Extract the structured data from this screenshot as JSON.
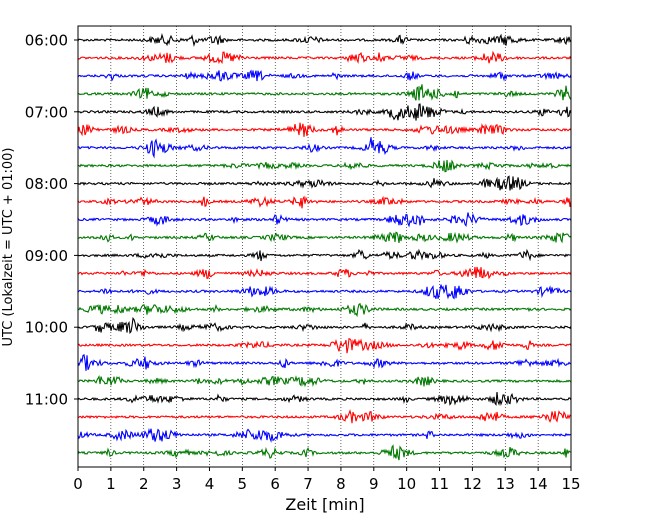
{
  "chart_data": {
    "type": "line",
    "title": "",
    "xlabel": "Zeit  [min]",
    "ylabel": "UTC (Lokalzeit = UTC + 01:00)",
    "xlim": [
      0,
      15
    ],
    "x_ticks": [
      "0",
      "1",
      "2",
      "3",
      "4",
      "5",
      "6",
      "7",
      "8",
      "9",
      "10",
      "11",
      "12",
      "13",
      "14",
      "15"
    ],
    "y_tick_labels": [
      "06:00",
      "07:00",
      "08:00",
      "09:00",
      "10:00",
      "11:00"
    ],
    "trace_interval_min": 15,
    "trace_count": 24,
    "first_trace": "06:00",
    "trace_colors": [
      "#000000",
      "#ff0000",
      "#0000ff",
      "#007800"
    ],
    "grid": "vertical dotted lines at each minute"
  }
}
